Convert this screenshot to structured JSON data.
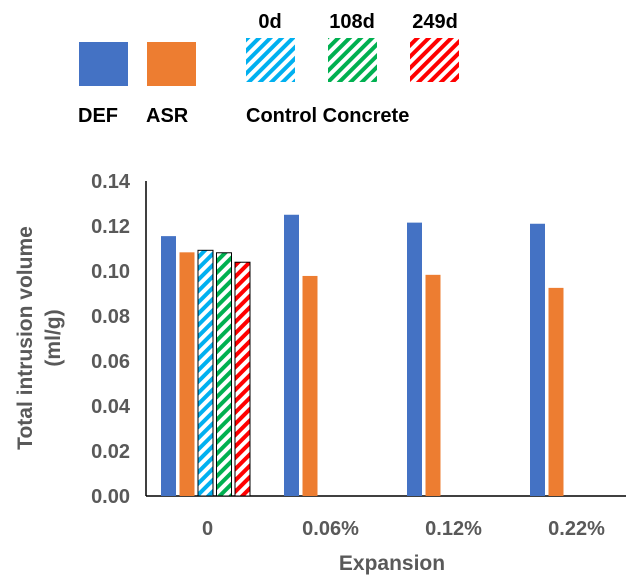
{
  "chart_data": {
    "type": "bar",
    "ylabel_line1": "Total intrusion volume",
    "ylabel_line2": "(ml/g)",
    "xlabel": "Expansion",
    "ylim": [
      0,
      0.14
    ],
    "yticks": [
      "0.00",
      "0.02",
      "0.04",
      "0.06",
      "0.08",
      "0.10",
      "0.12",
      "0.14"
    ],
    "categories": [
      "0",
      "0.06%",
      "0.12%",
      "0.22%"
    ],
    "series": [
      {
        "name": "DEF",
        "color": "#4472C4",
        "pattern": "solid",
        "values": [
          0.1155,
          0.125,
          0.1215,
          0.121
        ]
      },
      {
        "name": "ASR",
        "color": "#ED7D31",
        "pattern": "solid",
        "values": [
          0.1083,
          0.0978,
          0.0983,
          0.0925
        ]
      },
      {
        "name": "0d",
        "color": "#00B0F0",
        "pattern": "stripes",
        "values": [
          0.1092,
          null,
          null,
          null
        ]
      },
      {
        "name": "108d",
        "color": "#00B050",
        "pattern": "stripes",
        "values": [
          0.1081,
          null,
          null,
          null
        ]
      },
      {
        "name": "249d",
        "color": "#FF0000",
        "pattern": "stripes",
        "values": [
          0.1039,
          null,
          null,
          null
        ]
      }
    ],
    "legend_group_label": "Control Concrete",
    "grid": false,
    "legend_position": "top"
  }
}
